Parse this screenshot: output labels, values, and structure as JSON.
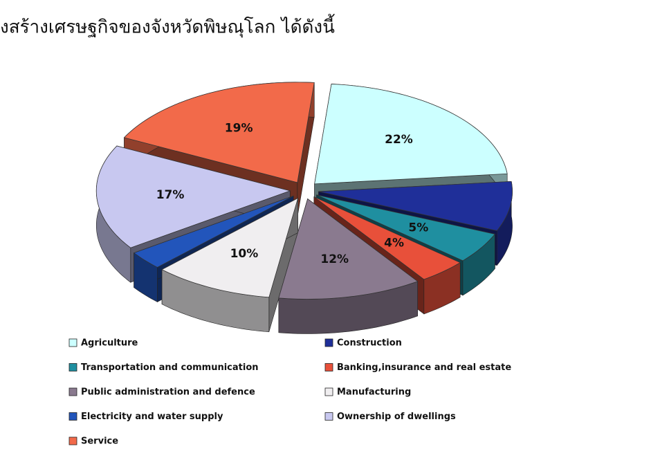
{
  "chart_data": {
    "type": "pie",
    "title": "งสร้างเศรษฐกิจของจังหวัดพิษณุโลก ได้ดังนี้",
    "categories": [
      "Agriculture",
      "Construction",
      "Transportation and communication",
      "Banking,insurance and real estate",
      "Public administration and defence",
      "Manufacturing",
      "Electricity and water supply",
      "Ownership of dwellings",
      "Service"
    ],
    "values": [
      22,
      8,
      5,
      4,
      12,
      10,
      3,
      17,
      19
    ],
    "value_labels": [
      "22%",
      null,
      "5%",
      "4%",
      "12%",
      "10%",
      null,
      "17%",
      "19%"
    ],
    "colors": [
      "#ccffff",
      "#1f2f99",
      "#1f8fa0",
      "#e8503a",
      "#8a7a8f",
      "#f0eef0",
      "#2255bb",
      "#c8c8f0",
      "#f26a4a"
    ]
  }
}
